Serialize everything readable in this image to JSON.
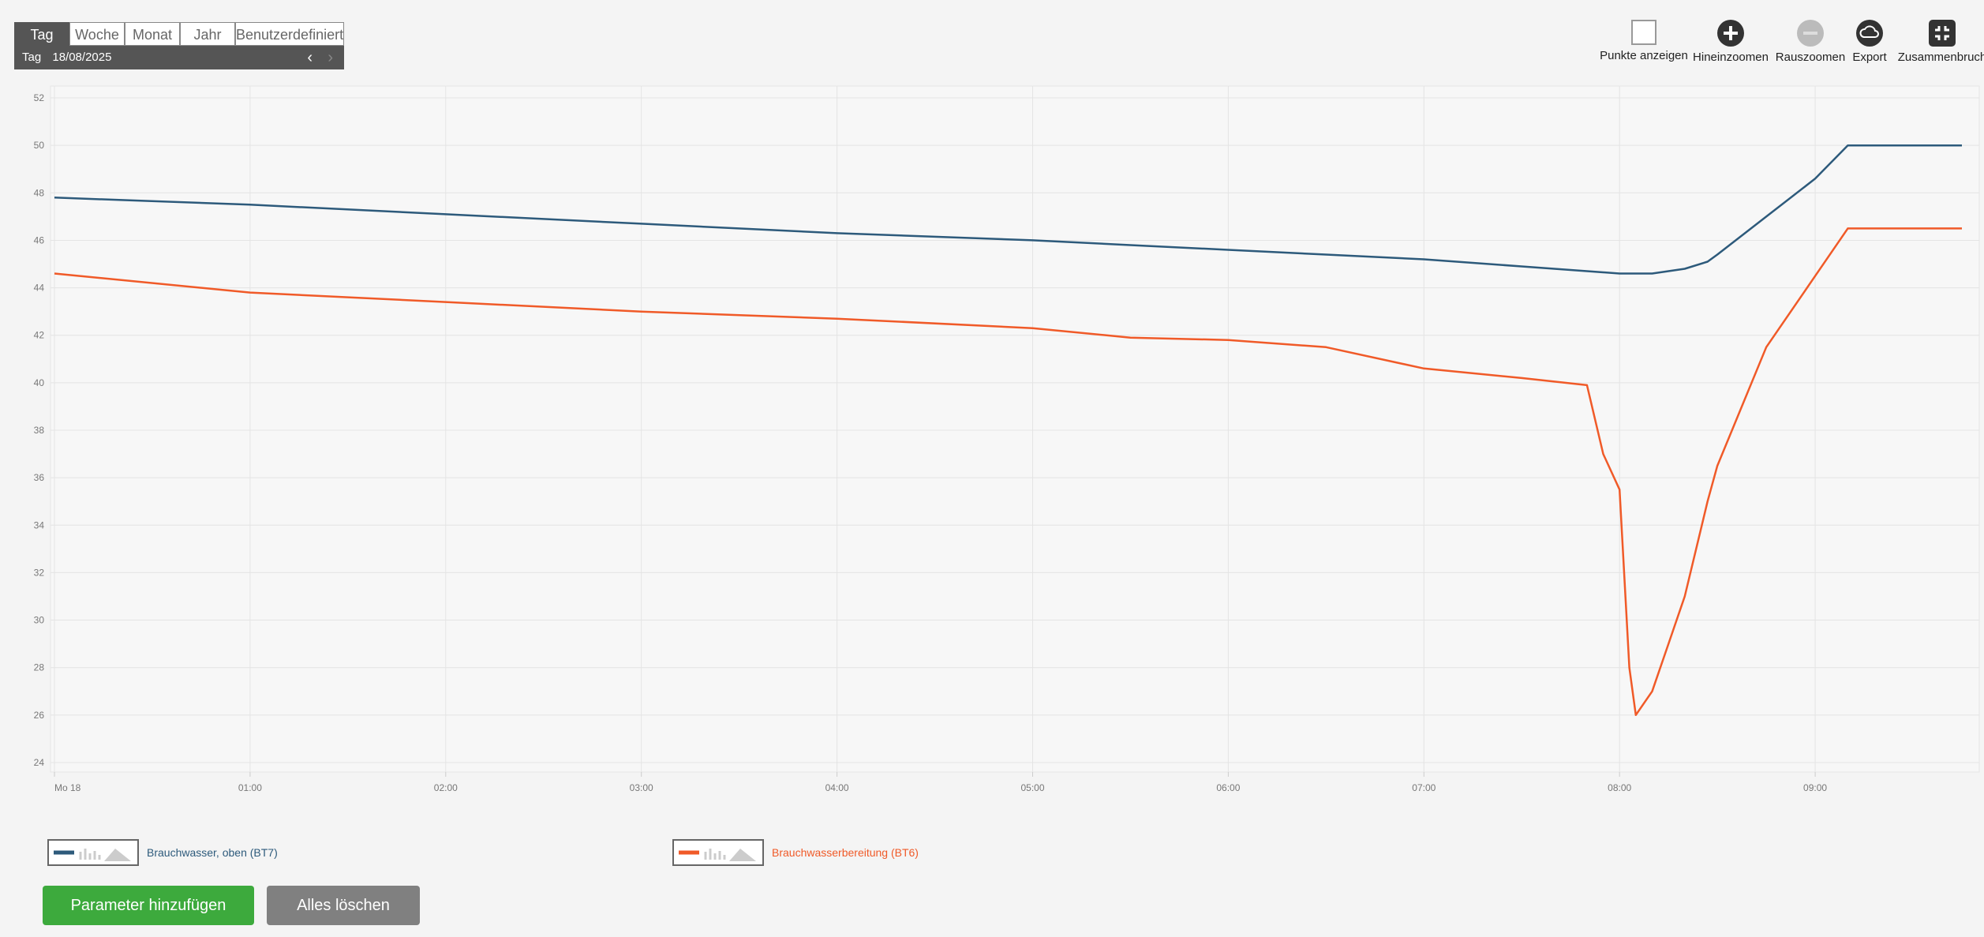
{
  "period_tabs": [
    "Tag",
    "Woche",
    "Monat",
    "Jahr",
    "Benutzerdefiniert"
  ],
  "date_bar": {
    "label": "Tag",
    "date": "18/08/2025"
  },
  "toolbar": [
    "Punkte anzeigen",
    "Hineinzoomen",
    "Rauszoomen",
    "Export",
    "Zusammenbruch"
  ],
  "chart_data": {
    "type": "line",
    "x": [
      "00:00",
      "01:00",
      "02:00",
      "03:00",
      "04:00",
      "05:00",
      "05:30",
      "06:00",
      "06:30",
      "07:00",
      "07:30",
      "07:50",
      "07:55",
      "08:00",
      "08:03",
      "08:05",
      "08:10",
      "08:15",
      "08:20",
      "08:27",
      "08:30",
      "08:45",
      "09:00",
      "09:10",
      "09:45"
    ],
    "series": [
      {
        "name": "Brauchwasser, oben (BT7)",
        "color": "#2d5a7b",
        "values": [
          47.8,
          47.5,
          47.1,
          46.7,
          46.3,
          46.0,
          45.8,
          45.6,
          45.4,
          45.2,
          44.9,
          44.7,
          44.65,
          44.6,
          44.6,
          44.6,
          44.6,
          44.7,
          44.8,
          45.1,
          45.4,
          47.0,
          48.6,
          50.0,
          50.0
        ]
      },
      {
        "name": "Brauchwasserbereitung (BT6)",
        "color": "#f05a28",
        "values": [
          44.6,
          43.8,
          43.4,
          43.0,
          42.7,
          42.3,
          41.9,
          41.8,
          41.5,
          40.6,
          40.2,
          39.9,
          37.0,
          35.5,
          28.0,
          26.0,
          27.0,
          29.0,
          31.0,
          35.0,
          36.5,
          41.5,
          44.5,
          46.5,
          46.5
        ]
      }
    ],
    "xlim": [
      "00:00",
      "09:45"
    ],
    "xticks": [
      {
        "value": "00:00",
        "label": "Mo 18"
      },
      "01:00",
      "02:00",
      "03:00",
      "04:00",
      "05:00",
      "06:00",
      "07:00",
      "08:00",
      "09:00"
    ],
    "ylim": [
      23.6,
      52.5
    ],
    "yticks": [
      24,
      26,
      28,
      30,
      32,
      34,
      36,
      38,
      40,
      42,
      44,
      46,
      48,
      50,
      52
    ],
    "grid": true
  },
  "buttons": [
    "Parameter hinzufügen",
    "Alles löschen"
  ]
}
